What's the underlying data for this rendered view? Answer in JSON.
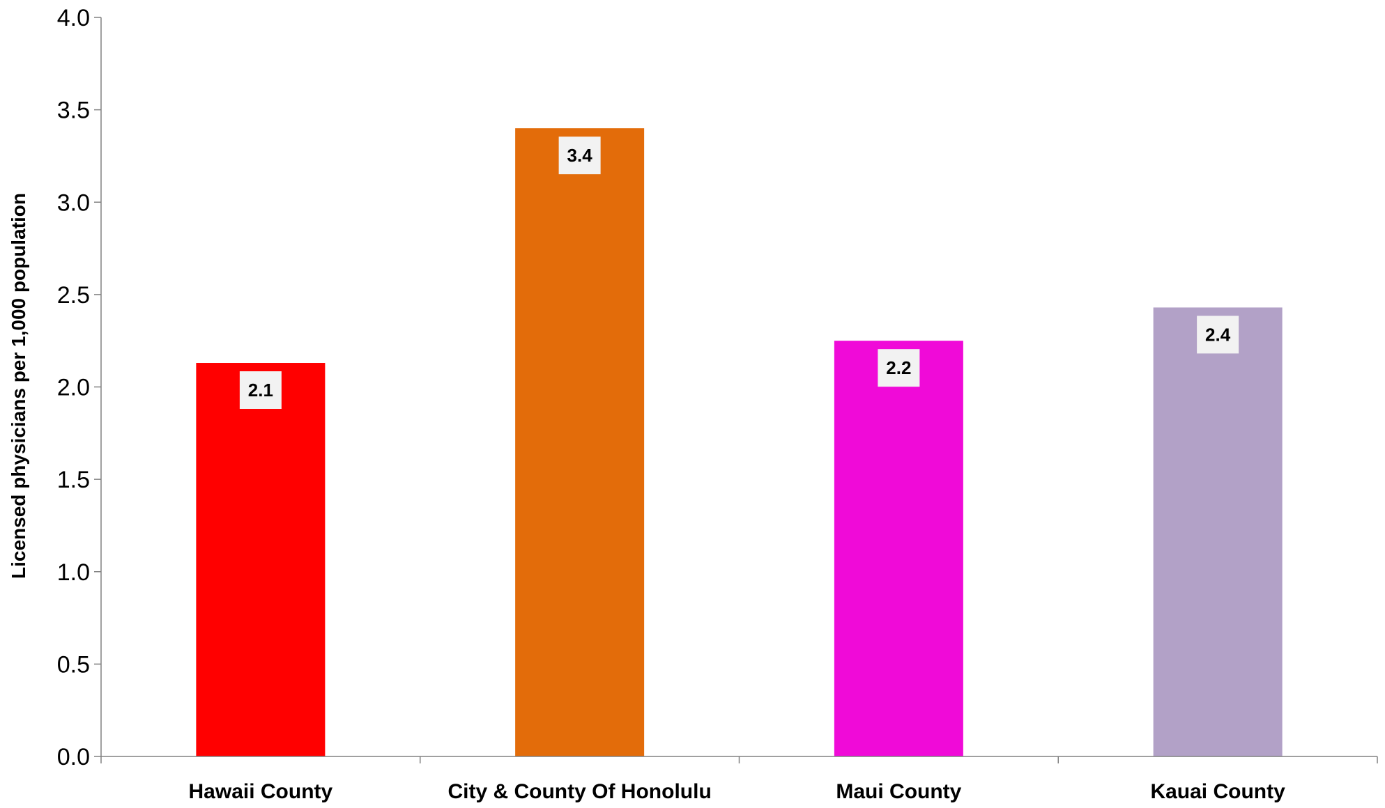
{
  "chart_data": {
    "type": "bar",
    "title": "",
    "xlabel": "",
    "ylabel": "Licensed physicians per 1,000 population",
    "categories": [
      "Hawaii County",
      "City & County Of Honolulu",
      "Maui County",
      "Kauai County"
    ],
    "values": [
      2.13,
      3.4,
      2.25,
      2.43
    ],
    "data_labels": [
      "2.1",
      "3.4",
      "2.2",
      "2.4"
    ],
    "bar_colors": [
      "#ff0000",
      "#e36c0a",
      "#f00ad8",
      "#b2a1c7"
    ],
    "ylim": [
      0,
      4.0
    ],
    "yticks": [
      "0.0",
      "0.5",
      "1.0",
      "1.5",
      "2.0",
      "2.5",
      "3.0",
      "3.5",
      "4.0"
    ],
    "grid": false,
    "legend": "none",
    "axis_color": "#808080",
    "label_box_color": "#f2f2f2"
  }
}
